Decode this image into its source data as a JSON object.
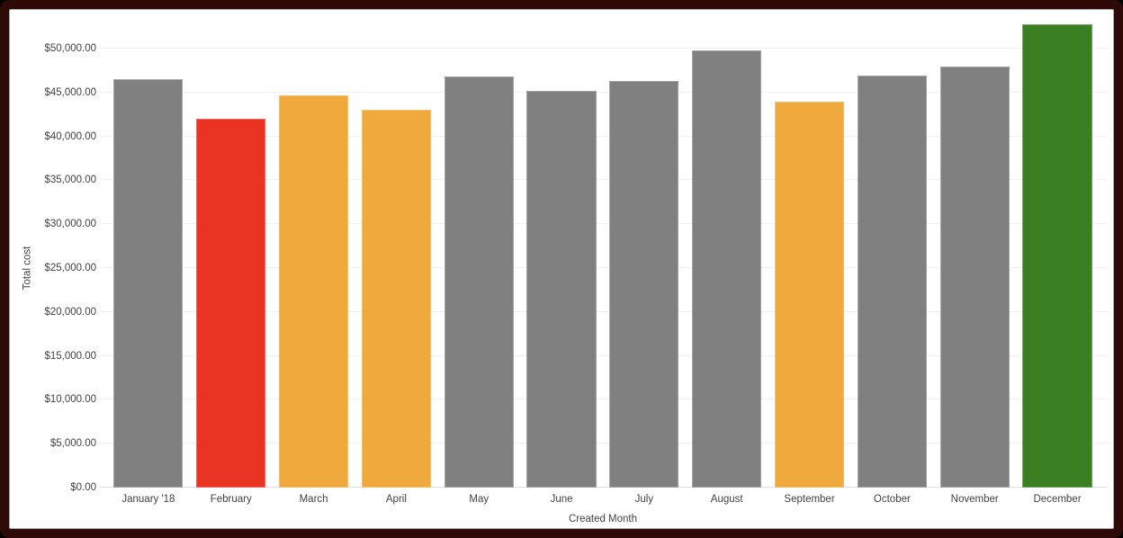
{
  "frame": {
    "outer_background": "#000000",
    "border_color": "#2d0a07",
    "card_background": "#ffffff"
  },
  "chart_data": {
    "type": "bar",
    "title": "",
    "xlabel": "Created Month",
    "ylabel": "Total cost",
    "categories": [
      "January '18",
      "February",
      "March",
      "April",
      "May",
      "June",
      "July",
      "August",
      "September",
      "October",
      "November",
      "December"
    ],
    "values": [
      46500,
      42000,
      44700,
      43000,
      46800,
      45200,
      46300,
      49800,
      44000,
      46900,
      48000,
      52800
    ],
    "bar_colors": [
      "#808080",
      "#e93323",
      "#f0a93d",
      "#f0a93d",
      "#808080",
      "#808080",
      "#808080",
      "#808080",
      "#f0a93d",
      "#808080",
      "#808080",
      "#3a8022"
    ],
    "ylim": [
      0,
      50000
    ],
    "y_ticks": [
      {
        "value": 0,
        "label": "$0.00"
      },
      {
        "value": 5000,
        "label": "$5,000.00"
      },
      {
        "value": 10000,
        "label": "$10,000.00"
      },
      {
        "value": 15000,
        "label": "$15,000.00"
      },
      {
        "value": 20000,
        "label": "$20,000.00"
      },
      {
        "value": 25000,
        "label": "$25,000.00"
      },
      {
        "value": 30000,
        "label": "$30,000.00"
      },
      {
        "value": 35000,
        "label": "$35,000.00"
      },
      {
        "value": 40000,
        "label": "$40,000.00"
      },
      {
        "value": 45000,
        "label": "$45,000.00"
      },
      {
        "value": 50000,
        "label": "$50,000.00"
      }
    ],
    "grid": true,
    "legend_position": "none",
    "style": {
      "gridline_color": "#f1f1f1",
      "baseline_color": "#dde0e4",
      "axis_label_color": "#424242"
    }
  }
}
